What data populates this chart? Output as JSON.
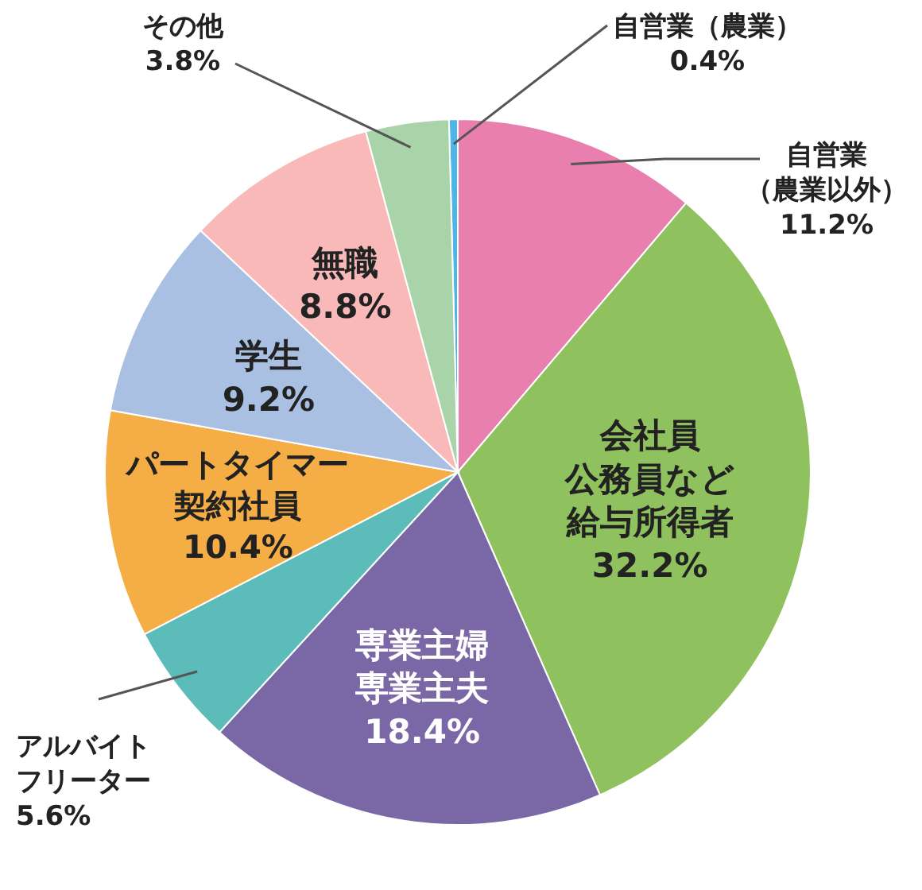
{
  "chart_data": {
    "type": "pie",
    "categories": [
      "自営業（農業）",
      "自営業（農業以外）",
      "会社員公務員など給与所得者",
      "専業主婦専業主夫",
      "アルバイトフリーター",
      "パートタイマー契約社員",
      "学生",
      "無職",
      "その他"
    ],
    "value_labels": [
      "0.4%",
      "11.2%",
      "32.2%",
      "18.4%",
      "5.6%",
      "10.4%",
      "9.2%",
      "8.8%",
      "3.8%"
    ],
    "values": [
      0.4,
      11.2,
      32.2,
      18.4,
      5.6,
      10.4,
      9.2,
      8.8,
      3.8
    ],
    "colors": [
      "#4db6e6",
      "#e87fae",
      "#8fc25e",
      "#7a68a6",
      "#5cbcba",
      "#f5ad45",
      "#a9c0e2",
      "#f9b9b9",
      "#a9d3a9"
    ]
  }
}
